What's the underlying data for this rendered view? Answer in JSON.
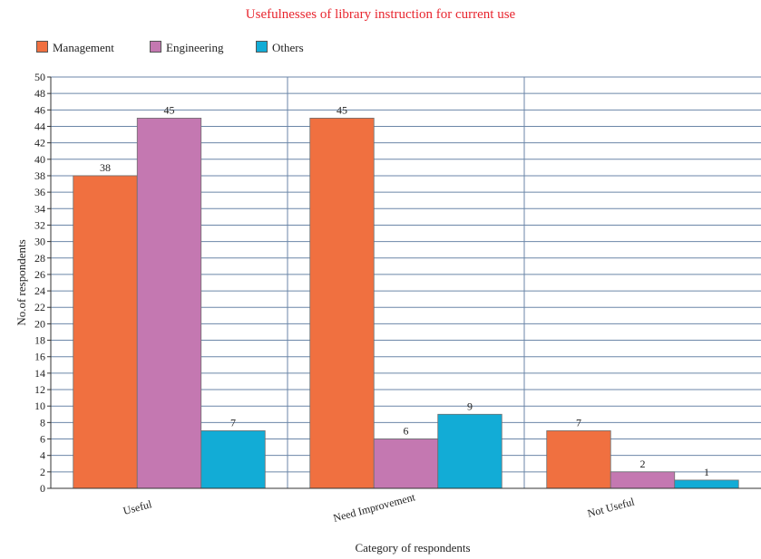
{
  "title": "Usefulnesses of library instruction for current use",
  "chart_data": {
    "type": "bar",
    "title": "Usefulnesses of library instruction for current use",
    "xlabel": "Category of respondents",
    "ylabel": "No.of respondents",
    "categories": [
      "Useful",
      "Need Improvement",
      "Not Useful"
    ],
    "series": [
      {
        "name": "Management",
        "values": [
          38,
          45,
          7
        ],
        "color": "#f07040"
      },
      {
        "name": "Engineering",
        "values": [
          45,
          6,
          2
        ],
        "color": "#c478b1"
      },
      {
        "name": "Others",
        "values": [
          7,
          9,
          1
        ],
        "color": "#12acd6"
      }
    ],
    "ylim": [
      0,
      50
    ],
    "ytick_step": 2,
    "grid": true,
    "legend_position": "top-left",
    "data_labels": true
  }
}
